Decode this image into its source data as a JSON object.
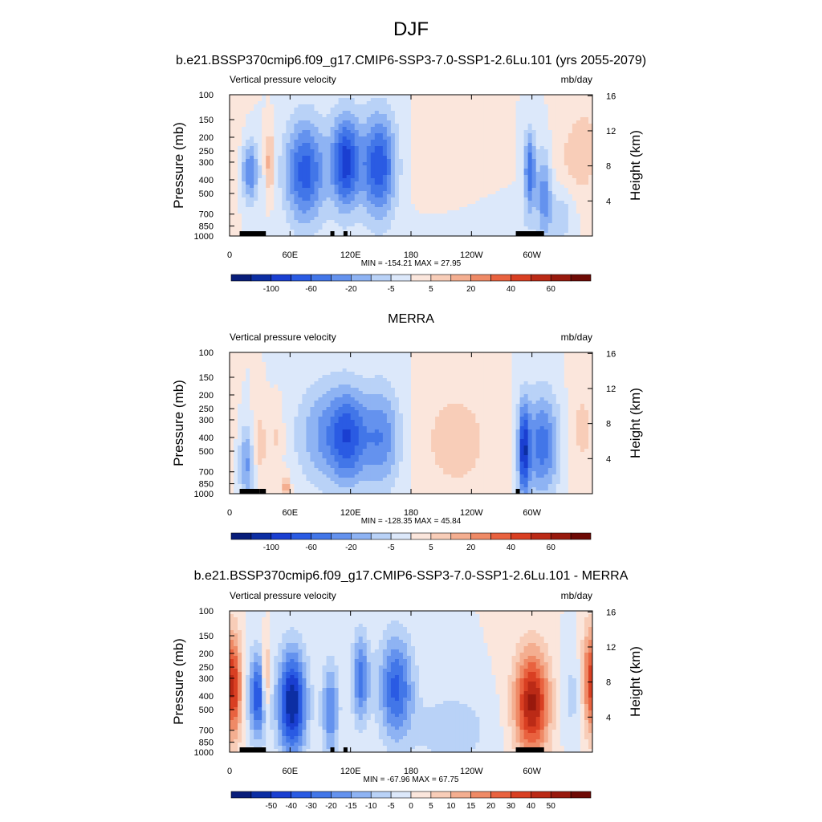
{
  "figure": {
    "title": "DJF"
  },
  "colors": {
    "neg": [
      "#081d7a",
      "#0c2ea3",
      "#1a3fd1",
      "#2a5be3",
      "#4276e8",
      "#6492ee",
      "#8eb3f3",
      "#b9d2f7",
      "#dce8fa"
    ],
    "pos": [
      "#fbe6dc",
      "#f8cdb8",
      "#f4ae90",
      "#ef8a66",
      "#e9623f",
      "#d93f22",
      "#bb2a16",
      "#98190d",
      "#6e0a05"
    ],
    "land_bar": "#000000"
  },
  "chart_data": [
    {
      "type": "heatmap",
      "title": "b.e21.BSSP370cmip6.f09_g17.CMIP6-SSP3-7.0-SSP1-2.6Lu.101 (yrs 2055-2079)",
      "left_label": "Vertical pressure velocity",
      "right_label": "mb/day",
      "ylabel": "Pressure (mb)",
      "y2label": "Height (km)",
      "x_ticks": [
        "0",
        "60E",
        "120E",
        "180",
        "120W",
        "60W"
      ],
      "y_ticks": [
        "100",
        "150",
        "200",
        "250",
        "300",
        "400",
        "500",
        "700",
        "850",
        "1000"
      ],
      "y2_ticks": [
        "16",
        "12",
        "8",
        "4"
      ],
      "min_text": "MIN = -154.21",
      "max_text": "MAX =  27.95",
      "min": -154.21,
      "max": 27.95,
      "colorbar_labels": [
        "-100",
        "-60",
        "-20",
        "-5",
        "5",
        "20",
        "40",
        "60"
      ],
      "colorbar_levels": 18,
      "fields": [
        {
          "lon": 20,
          "p": 350,
          "sx": 6,
          "sy": 0.35,
          "v": -70
        },
        {
          "lon": 40,
          "p": 300,
          "sx": 3,
          "sy": 0.35,
          "v": 50
        },
        {
          "lon": 75,
          "p": 350,
          "sx": 14,
          "sy": 0.6,
          "v": -95
        },
        {
          "lon": 115,
          "p": 300,
          "sx": 10,
          "sy": 0.55,
          "v": -110
        },
        {
          "lon": 148,
          "p": 320,
          "sx": 12,
          "sy": 0.6,
          "v": -100
        },
        {
          "lon": 220,
          "p": 320,
          "sx": 22,
          "sy": 0.6,
          "v": 14
        },
        {
          "lon": 255,
          "p": 850,
          "sx": 35,
          "sy": 0.25,
          "v": -18
        },
        {
          "lon": 298,
          "p": 350,
          "sx": 4,
          "sy": 0.45,
          "v": -85
        },
        {
          "lon": 312,
          "p": 500,
          "sx": 5,
          "sy": 0.5,
          "v": -60
        },
        {
          "lon": 340,
          "p": 300,
          "sx": 14,
          "sy": 0.55,
          "v": 18
        },
        {
          "lon": 330,
          "p": 700,
          "sx": 10,
          "sy": 0.35,
          "v": -30
        },
        {
          "lon": 355,
          "p": 200,
          "sx": 12,
          "sy": 0.8,
          "v": 14
        }
      ],
      "land": [
        [
          10,
          30
        ],
        [
          28,
          36
        ],
        [
          100,
          104
        ],
        [
          113,
          117
        ],
        [
          284,
          312
        ]
      ]
    },
    {
      "type": "heatmap",
      "title": "MERRA",
      "left_label": "Vertical pressure velocity",
      "right_label": "mb/day",
      "ylabel": "Pressure (mb)",
      "y2label": "Height (km)",
      "x_ticks": [
        "0",
        "60E",
        "120E",
        "180",
        "120W",
        "60W"
      ],
      "y_ticks": [
        "100",
        "150",
        "200",
        "250",
        "300",
        "400",
        "500",
        "700",
        "850",
        "1000"
      ],
      "y2_ticks": [
        "16",
        "12",
        "8",
        "4"
      ],
      "min_text": "MIN = -128.35",
      "max_text": "MAX =  45.84",
      "min": -128.35,
      "max": 45.84,
      "colorbar_labels": [
        "-100",
        "-60",
        "-20",
        "-5",
        "5",
        "20",
        "40",
        "60"
      ],
      "colorbar_levels": 18,
      "fields": [
        {
          "lon": 18,
          "p": 600,
          "sx": 6,
          "sy": 0.45,
          "v": -50
        },
        {
          "lon": 28,
          "p": 450,
          "sx": 6,
          "sy": 0.4,
          "v": 30
        },
        {
          "lon": 48,
          "p": 400,
          "sx": 4,
          "sy": 0.35,
          "v": 20
        },
        {
          "lon": 56,
          "p": 900,
          "sx": 3,
          "sy": 0.15,
          "v": 40
        },
        {
          "lon": 95,
          "p": 380,
          "sx": 20,
          "sy": 0.6,
          "v": -45
        },
        {
          "lon": 118,
          "p": 400,
          "sx": 12,
          "sy": 0.55,
          "v": -60
        },
        {
          "lon": 150,
          "p": 400,
          "sx": 14,
          "sy": 0.6,
          "v": -55
        },
        {
          "lon": 225,
          "p": 420,
          "sx": 26,
          "sy": 0.65,
          "v": 22
        },
        {
          "lon": 292,
          "p": 500,
          "sx": 4,
          "sy": 0.55,
          "v": -85
        },
        {
          "lon": 310,
          "p": 450,
          "sx": 12,
          "sy": 0.6,
          "v": -65
        },
        {
          "lon": 350,
          "p": 350,
          "sx": 10,
          "sy": 0.6,
          "v": 18
        }
      ],
      "land": [
        [
          10,
          30
        ],
        [
          30,
          36
        ],
        [
          284,
          288
        ]
      ]
    },
    {
      "type": "heatmap",
      "title": "b.e21.BSSP370cmip6.f09_g17.CMIP6-SSP3-7.0-SSP1-2.6Lu.101 - MERRA",
      "left_label": "Vertical pressure velocity",
      "right_label": "mb/day",
      "ylabel": "Pressure (mb)",
      "y2label": "Height (km)",
      "x_ticks": [
        "0",
        "60E",
        "120E",
        "180",
        "120W",
        "60W"
      ],
      "y_ticks": [
        "100",
        "150",
        "200",
        "250",
        "300",
        "400",
        "500",
        "700",
        "850",
        "1000"
      ],
      "y2_ticks": [
        "16",
        "12",
        "8",
        "4"
      ],
      "min_text": "MIN = -67.96",
      "max_text": "MAX =  67.75",
      "min": -67.96,
      "max": 67.75,
      "colorbar_labels": [
        "-50",
        "-40",
        "-30",
        "-20",
        "-15",
        "-10",
        "-5",
        "0",
        "5",
        "10",
        "15",
        "20",
        "30",
        "40",
        "50"
      ],
      "colorbar_levels": 18,
      "fields": [
        {
          "lon": 5,
          "p": 350,
          "sx": 5,
          "sy": 0.6,
          "v": 40
        },
        {
          "lon": 28,
          "p": 400,
          "sx": 6,
          "sy": 0.5,
          "v": -45
        },
        {
          "lon": 36,
          "p": 300,
          "sx": 3,
          "sy": 0.4,
          "v": 30
        },
        {
          "lon": 62,
          "p": 450,
          "sx": 10,
          "sy": 0.6,
          "v": -60
        },
        {
          "lon": 100,
          "p": 500,
          "sx": 6,
          "sy": 0.55,
          "v": -30
        },
        {
          "lon": 130,
          "p": 300,
          "sx": 6,
          "sy": 0.5,
          "v": -35
        },
        {
          "lon": 165,
          "p": 350,
          "sx": 12,
          "sy": 0.6,
          "v": -40
        },
        {
          "lon": 220,
          "p": 700,
          "sx": 25,
          "sy": 0.4,
          "v": -15
        },
        {
          "lon": 300,
          "p": 450,
          "sx": 12,
          "sy": 0.6,
          "v": 55
        },
        {
          "lon": 340,
          "p": 400,
          "sx": 8,
          "sy": 0.5,
          "v": -10
        },
        {
          "lon": 356,
          "p": 300,
          "sx": 5,
          "sy": 0.6,
          "v": 30
        }
      ],
      "land": [
        [
          10,
          30
        ],
        [
          28,
          36
        ],
        [
          100,
          104
        ],
        [
          113,
          117
        ],
        [
          284,
          312
        ]
      ]
    }
  ]
}
